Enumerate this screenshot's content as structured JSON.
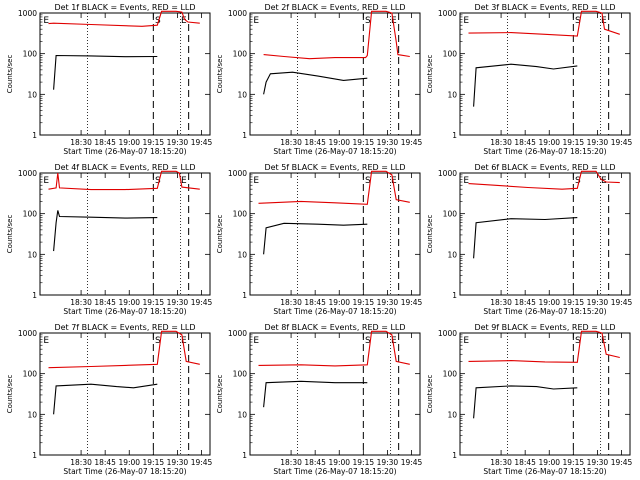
{
  "figure": {
    "colors": {
      "events": "#000000",
      "lld": "#e00000",
      "axis": "#000000",
      "background": "#ffffff"
    }
  },
  "chart_data": [
    {
      "type": "line",
      "title": "Det 1f  BLACK = Events, RED = LLD",
      "xlabel": "Start Time (26-May-07 18:15:20)",
      "ylabel": "Counts/sec",
      "yscale": "log",
      "ylim": [
        1,
        1000
      ],
      "yticks": [
        "1",
        "10",
        "100",
        "1000"
      ],
      "xticks": [
        "18:30",
        "18:45",
        "19:00",
        "19:15",
        "19:30",
        "19:45"
      ],
      "vlines": {
        "dotted": [
          "18:34",
          "19:32"
        ],
        "dashed": [
          "19:15",
          "19:37"
        ]
      },
      "markers": [
        "E",
        "S",
        "E"
      ],
      "series": [
        {
          "key": "lld",
          "color": "#e00000",
          "points": [
            [
              0.05,
              550
            ],
            [
              0.08,
              560
            ],
            [
              0.3,
              520
            ],
            [
              0.6,
              470
            ],
            [
              0.69,
              500
            ],
            [
              0.715,
              1100
            ],
            [
              0.8,
              1100
            ],
            [
              0.835,
              1050
            ],
            [
              0.85,
              700
            ],
            [
              0.87,
              600
            ],
            [
              0.94,
              560
            ]
          ]
        },
        {
          "key": "events",
          "color": "#000000",
          "points": [
            [
              0.08,
              13
            ],
            [
              0.095,
              90
            ],
            [
              0.3,
              88
            ],
            [
              0.5,
              84
            ],
            [
              0.69,
              85
            ]
          ]
        }
      ]
    },
    {
      "type": "line",
      "title": "Det 2f  BLACK = Events, RED = LLD",
      "xlabel": "Start Time (26-May-07 18:15:20)",
      "ylabel": "Counts/sec",
      "yscale": "log",
      "ylim": [
        1,
        1000
      ],
      "yticks": [
        "1",
        "10",
        "100",
        "1000"
      ],
      "xticks": [
        "18:30",
        "18:45",
        "19:00",
        "19:15",
        "19:30",
        "19:45"
      ],
      "vlines": {
        "dotted": [
          "18:34",
          "19:32"
        ],
        "dashed": [
          "19:15",
          "19:37"
        ]
      },
      "markers": [
        "E",
        "S",
        "E"
      ],
      "series": [
        {
          "key": "lld",
          "color": "#e00000",
          "points": [
            [
              0.08,
              95
            ],
            [
              0.2,
              85
            ],
            [
              0.35,
              75
            ],
            [
              0.5,
              80
            ],
            [
              0.68,
              80
            ],
            [
              0.69,
              90
            ],
            [
              0.715,
              1100
            ],
            [
              0.8,
              1100
            ],
            [
              0.835,
              1000
            ],
            [
              0.86,
              200
            ],
            [
              0.87,
              95
            ],
            [
              0.94,
              85
            ]
          ]
        },
        {
          "key": "events",
          "color": "#000000",
          "points": [
            [
              0.08,
              10
            ],
            [
              0.095,
              20
            ],
            [
              0.12,
              32
            ],
            [
              0.25,
              35
            ],
            [
              0.4,
              28
            ],
            [
              0.55,
              22
            ],
            [
              0.69,
              25
            ]
          ]
        }
      ]
    },
    {
      "type": "line",
      "title": "Det 3f  BLACK = Events, RED = LLD",
      "xlabel": "Start Time (26-May-07 18:15:20)",
      "ylabel": "Counts/sec",
      "yscale": "log",
      "ylim": [
        1,
        1000
      ],
      "yticks": [
        "1",
        "10",
        "100",
        "1000"
      ],
      "xticks": [
        "18:30",
        "18:45",
        "19:00",
        "19:15",
        "19:30",
        "19:45"
      ],
      "vlines": {
        "dotted": [
          "18:34",
          "19:32"
        ],
        "dashed": [
          "19:15",
          "19:37"
        ]
      },
      "markers": [
        "E",
        "S",
        "E"
      ],
      "series": [
        {
          "key": "lld",
          "color": "#e00000",
          "points": [
            [
              0.05,
              320
            ],
            [
              0.3,
              330
            ],
            [
              0.5,
              300
            ],
            [
              0.69,
              270
            ],
            [
              0.715,
              1100
            ],
            [
              0.8,
              1100
            ],
            [
              0.835,
              1000
            ],
            [
              0.85,
              400
            ],
            [
              0.94,
              300
            ]
          ]
        },
        {
          "key": "events",
          "color": "#000000",
          "points": [
            [
              0.08,
              5
            ],
            [
              0.095,
              45
            ],
            [
              0.3,
              55
            ],
            [
              0.45,
              48
            ],
            [
              0.55,
              42
            ],
            [
              0.69,
              50
            ]
          ]
        }
      ]
    },
    {
      "type": "line",
      "title": "Det 4f  BLACK = Events, RED = LLD",
      "xlabel": "Start Time (26-May-07 18:15:20)",
      "ylabel": "Counts/sec",
      "yscale": "log",
      "ylim": [
        1,
        1000
      ],
      "yticks": [
        "1",
        "10",
        "100",
        "1000"
      ],
      "xticks": [
        "18:30",
        "18:45",
        "19:00",
        "19:15",
        "19:30",
        "19:45"
      ],
      "vlines": {
        "dotted": [
          "18:34",
          "19:32"
        ],
        "dashed": [
          "19:15",
          "19:37"
        ]
      },
      "markers": [
        "E",
        "S",
        "E"
      ],
      "series": [
        {
          "key": "lld",
          "color": "#e00000",
          "points": [
            [
              0.05,
              400
            ],
            [
              0.095,
              430
            ],
            [
              0.105,
              1000
            ],
            [
              0.115,
              430
            ],
            [
              0.3,
              390
            ],
            [
              0.5,
              390
            ],
            [
              0.69,
              420
            ],
            [
              0.715,
              1100
            ],
            [
              0.8,
              1100
            ],
            [
              0.82,
              1000
            ],
            [
              0.835,
              450
            ],
            [
              0.94,
              400
            ]
          ]
        },
        {
          "key": "events",
          "color": "#000000",
          "points": [
            [
              0.08,
              12
            ],
            [
              0.095,
              60
            ],
            [
              0.105,
              120
            ],
            [
              0.115,
              85
            ],
            [
              0.3,
              82
            ],
            [
              0.5,
              78
            ],
            [
              0.69,
              80
            ]
          ]
        }
      ]
    },
    {
      "type": "line",
      "title": "Det 5f  BLACK = Events, RED = LLD",
      "xlabel": "Start Time (26-May-07 18:15:20)",
      "ylabel": "Counts/sec",
      "yscale": "log",
      "ylim": [
        1,
        1000
      ],
      "yticks": [
        "1",
        "10",
        "100",
        "1000"
      ],
      "xticks": [
        "18:30",
        "18:45",
        "19:00",
        "19:15",
        "19:30",
        "19:45"
      ],
      "vlines": {
        "dotted": [
          "18:34",
          "19:32"
        ],
        "dashed": [
          "19:15",
          "19:37"
        ]
      },
      "markers": [
        "E",
        "S",
        "E"
      ],
      "series": [
        {
          "key": "lld",
          "color": "#e00000",
          "points": [
            [
              0.05,
              180
            ],
            [
              0.3,
              200
            ],
            [
              0.5,
              185
            ],
            [
              0.69,
              170
            ],
            [
              0.715,
              1100
            ],
            [
              0.8,
              1100
            ],
            [
              0.835,
              900
            ],
            [
              0.86,
              220
            ],
            [
              0.94,
              190
            ]
          ]
        },
        {
          "key": "events",
          "color": "#000000",
          "points": [
            [
              0.08,
              10
            ],
            [
              0.095,
              45
            ],
            [
              0.2,
              58
            ],
            [
              0.4,
              55
            ],
            [
              0.55,
              52
            ],
            [
              0.69,
              55
            ]
          ]
        }
      ]
    },
    {
      "type": "line",
      "title": "Det 6f  BLACK = Events, RED = LLD",
      "xlabel": "Start Time (26-May-07 18:15:20)",
      "ylabel": "Counts/sec",
      "yscale": "log",
      "ylim": [
        1,
        1000
      ],
      "yticks": [
        "1",
        "10",
        "100",
        "1000"
      ],
      "xticks": [
        "18:30",
        "18:45",
        "19:00",
        "19:15",
        "19:30",
        "19:45"
      ],
      "vlines": {
        "dotted": [
          "18:34",
          "19:32"
        ],
        "dashed": [
          "19:15",
          "19:37"
        ]
      },
      "markers": [
        "E",
        "S",
        "E"
      ],
      "series": [
        {
          "key": "lld",
          "color": "#e00000",
          "points": [
            [
              0.05,
              550
            ],
            [
              0.2,
              500
            ],
            [
              0.4,
              440
            ],
            [
              0.6,
              400
            ],
            [
              0.69,
              420
            ],
            [
              0.715,
              1100
            ],
            [
              0.8,
              1100
            ],
            [
              0.83,
              700
            ],
            [
              0.86,
              600
            ],
            [
              0.94,
              580
            ]
          ]
        },
        {
          "key": "events",
          "color": "#000000",
          "points": [
            [
              0.08,
              8
            ],
            [
              0.095,
              60
            ],
            [
              0.3,
              75
            ],
            [
              0.5,
              72
            ],
            [
              0.69,
              80
            ]
          ]
        }
      ]
    },
    {
      "type": "line",
      "title": "Det 7f  BLACK = Events, RED = LLD",
      "xlabel": "Start Time (26-May-07 18:15:20)",
      "ylabel": "Counts/sec",
      "yscale": "log",
      "ylim": [
        1,
        1000
      ],
      "yticks": [
        "1",
        "10",
        "100",
        "1000"
      ],
      "xticks": [
        "18:30",
        "18:45",
        "19:00",
        "19:15",
        "19:30",
        "19:45"
      ],
      "vlines": {
        "dotted": [
          "18:34",
          "19:32"
        ],
        "dashed": [
          "19:15",
          "19:37"
        ]
      },
      "markers": [
        "E",
        "S",
        "E"
      ],
      "series": [
        {
          "key": "lld",
          "color": "#e00000",
          "points": [
            [
              0.05,
              140
            ],
            [
              0.3,
              150
            ],
            [
              0.5,
              160
            ],
            [
              0.69,
              170
            ],
            [
              0.715,
              1100
            ],
            [
              0.8,
              1100
            ],
            [
              0.835,
              900
            ],
            [
              0.86,
              200
            ],
            [
              0.94,
              170
            ]
          ]
        },
        {
          "key": "events",
          "color": "#000000",
          "points": [
            [
              0.08,
              10
            ],
            [
              0.095,
              50
            ],
            [
              0.3,
              55
            ],
            [
              0.45,
              48
            ],
            [
              0.55,
              45
            ],
            [
              0.69,
              55
            ]
          ]
        }
      ]
    },
    {
      "type": "line",
      "title": "Det 8f  BLACK = Events, RED = LLD",
      "xlabel": "Start Time (26-May-07 18:15:20)",
      "ylabel": "Counts/sec",
      "yscale": "log",
      "ylim": [
        1,
        1000
      ],
      "yticks": [
        "1",
        "10",
        "100",
        "1000"
      ],
      "xticks": [
        "18:30",
        "18:45",
        "19:00",
        "19:15",
        "19:30",
        "19:45"
      ],
      "vlines": {
        "dotted": [
          "18:34",
          "19:32"
        ],
        "dashed": [
          "19:15",
          "19:37"
        ]
      },
      "markers": [
        "E",
        "S",
        "E"
      ],
      "series": [
        {
          "key": "lld",
          "color": "#e00000",
          "points": [
            [
              0.05,
              160
            ],
            [
              0.3,
              165
            ],
            [
              0.5,
              155
            ],
            [
              0.69,
              165
            ],
            [
              0.715,
              1100
            ],
            [
              0.8,
              1100
            ],
            [
              0.835,
              900
            ],
            [
              0.86,
              200
            ],
            [
              0.94,
              170
            ]
          ]
        },
        {
          "key": "events",
          "color": "#000000",
          "points": [
            [
              0.08,
              15
            ],
            [
              0.095,
              60
            ],
            [
              0.3,
              65
            ],
            [
              0.5,
              60
            ],
            [
              0.69,
              60
            ]
          ]
        }
      ]
    },
    {
      "type": "line",
      "title": "Det 9f  BLACK = Events, RED = LLD",
      "xlabel": "Start Time (26-May-07 18:15:20)",
      "ylabel": "Counts/sec",
      "yscale": "log",
      "ylim": [
        1,
        1000
      ],
      "yticks": [
        "1",
        "10",
        "100",
        "1000"
      ],
      "xticks": [
        "18:30",
        "18:45",
        "19:00",
        "19:15",
        "19:30",
        "19:45"
      ],
      "vlines": {
        "dotted": [
          "18:34",
          "19:32"
        ],
        "dashed": [
          "19:15",
          "19:37"
        ]
      },
      "markers": [
        "E",
        "S",
        "E"
      ],
      "series": [
        {
          "key": "lld",
          "color": "#e00000",
          "points": [
            [
              0.05,
              200
            ],
            [
              0.3,
              210
            ],
            [
              0.5,
              195
            ],
            [
              0.69,
              190
            ],
            [
              0.715,
              1100
            ],
            [
              0.8,
              1100
            ],
            [
              0.835,
              1000
            ],
            [
              0.86,
              300
            ],
            [
              0.94,
              250
            ]
          ]
        },
        {
          "key": "events",
          "color": "#000000",
          "points": [
            [
              0.08,
              8
            ],
            [
              0.095,
              45
            ],
            [
              0.3,
              50
            ],
            [
              0.45,
              48
            ],
            [
              0.55,
              42
            ],
            [
              0.69,
              45
            ]
          ]
        }
      ]
    }
  ]
}
